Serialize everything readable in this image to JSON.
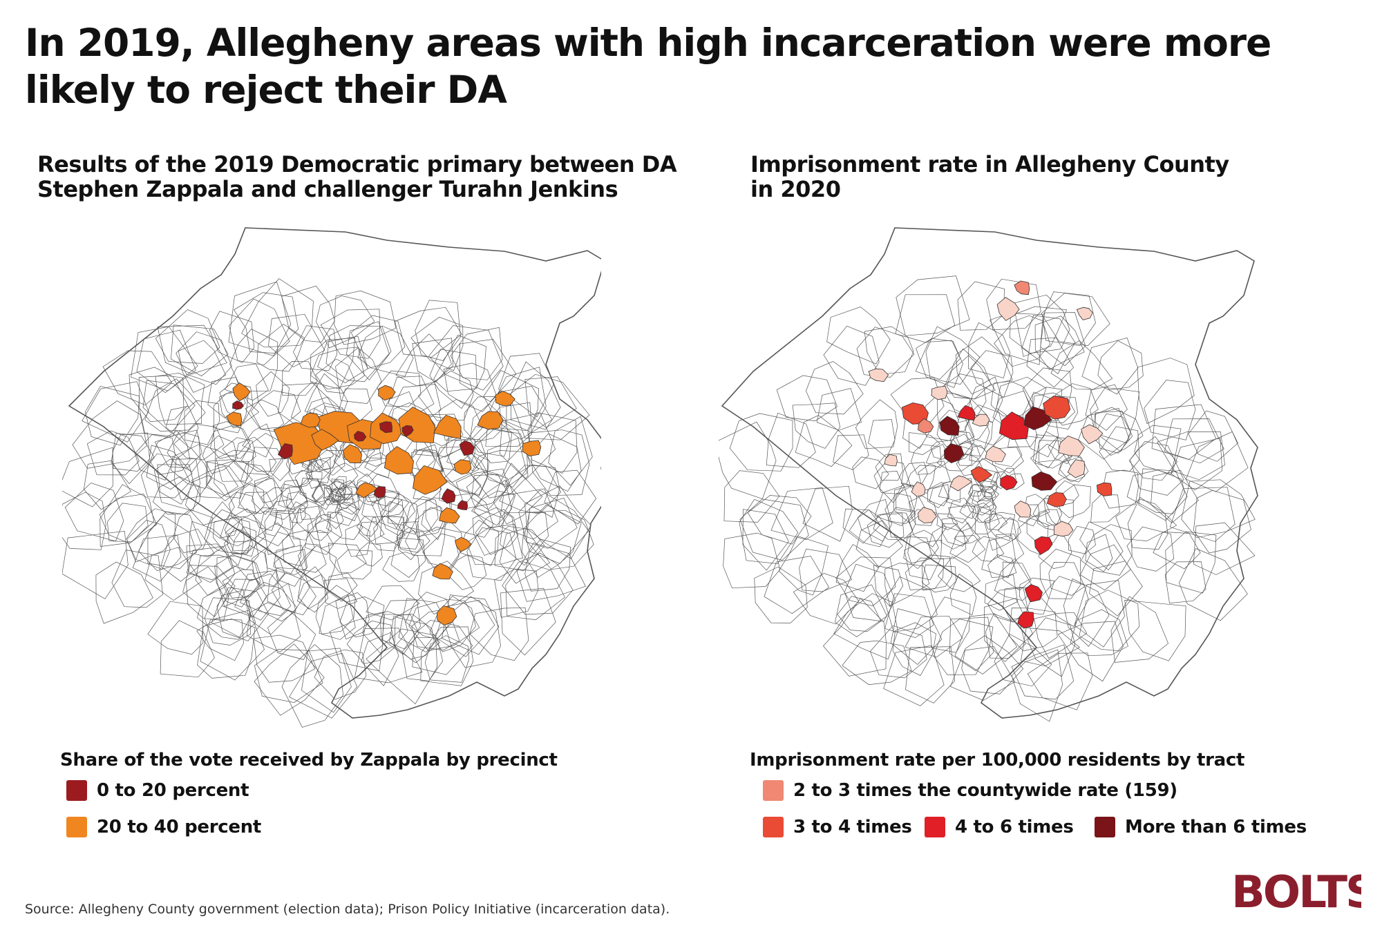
{
  "title": "In 2019, Allegheny areas with high incarceration were more likely to reject their DA",
  "left_panel": {
    "subtitle": "Results of the 2019 Democratic primary between DA Stephen Zappala and challenger Turahn Jenkins",
    "legend_title": "Share of the vote received by Zappala by precinct",
    "legend": [
      {
        "label": "0 to 20 percent",
        "color": "#9b1b1f"
      },
      {
        "label": "20 to 40 percent",
        "color": "#f0861f"
      }
    ]
  },
  "right_panel": {
    "subtitle": "Imprisonment rate in Allegheny County in 2020",
    "legend_title": "Imprisonment rate per 100,000 residents by tract",
    "legend": [
      {
        "label": "2 to 3 times the countywide rate (159)",
        "color": "#f08874"
      },
      {
        "label": "3 to 4 times",
        "color": "#ea4b35"
      },
      {
        "label": "4 to 6 times",
        "color": "#e01f26"
      },
      {
        "label": "More than 6 times",
        "color": "#7b1418"
      }
    ]
  },
  "colors": {
    "pale": "#f9d4c8",
    "outline": "#444444",
    "logo": "#8b1e2d"
  },
  "source": "Source: Allegheny County government (election data); Prison Policy Initiative (incarceration data).",
  "logo_text": "BOLTS"
}
